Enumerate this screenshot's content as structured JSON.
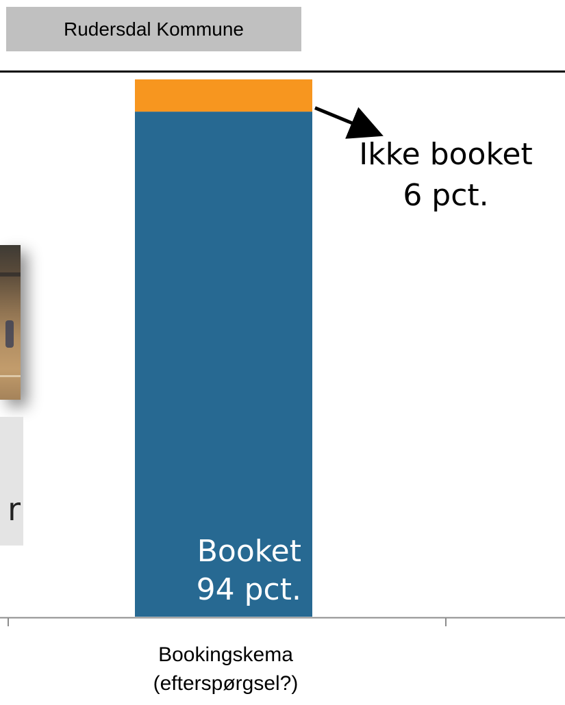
{
  "header": {
    "org_name": "Rudersdal Kommune"
  },
  "side_box": {
    "text": "r"
  },
  "chart_data": {
    "type": "bar",
    "stacked": true,
    "categories": [
      "Bookingskema\n(efterspørgsel?)"
    ],
    "category_lines": [
      "Bookingskema",
      "(efterspørgsel?)"
    ],
    "ylim": [
      0,
      100
    ],
    "series": [
      {
        "name": "Booket",
        "values": [
          94
        ],
        "color": "#276992",
        "label_lines": [
          "Booket",
          "94 pct."
        ]
      },
      {
        "name": "Ikke booket",
        "values": [
          6
        ],
        "color": "#f7961f",
        "label_lines": [
          "Ikke booket",
          "6 pct."
        ]
      }
    ],
    "title": "",
    "xlabel": "",
    "ylabel": ""
  }
}
